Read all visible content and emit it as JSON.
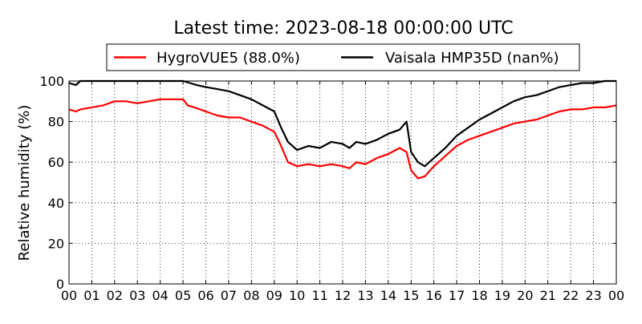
{
  "chart_data": {
    "type": "line",
    "title": "Latest time: 2023-08-18 00:00:00 UTC",
    "ylabel": "Relative humidity (%)",
    "xlabel": "",
    "ylim": [
      0,
      100
    ],
    "xlim": [
      0,
      24
    ],
    "grid": true,
    "legend_position": "top",
    "x_ticks": [
      {
        "value": 0,
        "label": "00"
      },
      {
        "value": 1,
        "label": "01"
      },
      {
        "value": 2,
        "label": "02"
      },
      {
        "value": 3,
        "label": "03"
      },
      {
        "value": 4,
        "label": "04"
      },
      {
        "value": 5,
        "label": "05"
      },
      {
        "value": 6,
        "label": "06"
      },
      {
        "value": 7,
        "label": "07"
      },
      {
        "value": 8,
        "label": "08"
      },
      {
        "value": 9,
        "label": "09"
      },
      {
        "value": 10,
        "label": "10"
      },
      {
        "value": 11,
        "label": "11"
      },
      {
        "value": 12,
        "label": "12"
      },
      {
        "value": 13,
        "label": "13"
      },
      {
        "value": 14,
        "label": "14"
      },
      {
        "value": 15,
        "label": "15"
      },
      {
        "value": 16,
        "label": "16"
      },
      {
        "value": 17,
        "label": "17"
      },
      {
        "value": 18,
        "label": "18"
      },
      {
        "value": 19,
        "label": "19"
      },
      {
        "value": 20,
        "label": "20"
      },
      {
        "value": 21,
        "label": "21"
      },
      {
        "value": 22,
        "label": "22"
      },
      {
        "value": 23,
        "label": "23"
      },
      {
        "value": 24,
        "label": "00"
      }
    ],
    "y_ticks": [
      0,
      20,
      40,
      60,
      80,
      100
    ],
    "series": [
      {
        "name": "HygroVUE5 (88.0%)",
        "color": "#ff0000",
        "x": [
          0,
          0.3,
          0.5,
          1,
          1.5,
          2,
          2.5,
          3,
          3.5,
          4,
          4.5,
          5,
          5.2,
          5.5,
          6,
          6.5,
          7,
          7.5,
          8,
          8.5,
          9,
          9.3,
          9.6,
          10,
          10.5,
          11,
          11.5,
          12,
          12.3,
          12.6,
          13,
          13.5,
          14,
          14.5,
          14.8,
          15,
          15.3,
          15.6,
          16,
          16.5,
          17,
          17.5,
          18,
          18.5,
          19,
          19.5,
          20,
          20.5,
          21,
          21.5,
          22,
          22.5,
          23,
          23.5,
          24
        ],
        "values": [
          86,
          85,
          86,
          87,
          88,
          90,
          90,
          89,
          90,
          91,
          91,
          91,
          88,
          87,
          85,
          83,
          82,
          82,
          80,
          78,
          75,
          68,
          60,
          58,
          59,
          58,
          59,
          58,
          57,
          60,
          59,
          62,
          64,
          67,
          65,
          56,
          52,
          53,
          58,
          63,
          68,
          71,
          73,
          75,
          77,
          79,
          80,
          81,
          83,
          85,
          86,
          86,
          87,
          87,
          88
        ]
      },
      {
        "name": "Vaisala HMP35D (nan%)",
        "color": "#000000",
        "x": [
          0,
          0.3,
          0.5,
          1,
          1.5,
          2,
          2.5,
          3,
          3.5,
          4,
          4.5,
          5,
          5.3,
          5.6,
          6,
          6.5,
          7,
          7.5,
          8,
          8.5,
          9,
          9.3,
          9.6,
          10,
          10.5,
          11,
          11.5,
          12,
          12.3,
          12.6,
          13,
          13.5,
          14,
          14.5,
          14.8,
          15,
          15.3,
          15.6,
          16,
          16.5,
          17,
          17.5,
          18,
          18.5,
          19,
          19.5,
          20,
          20.5,
          21,
          21.5,
          22,
          22.5,
          23,
          23.5,
          24
        ],
        "values": [
          99,
          98,
          100,
          100,
          100,
          100,
          100,
          100,
          100,
          100,
          100,
          100,
          99,
          98,
          97,
          96,
          95,
          93,
          91,
          88,
          85,
          77,
          70,
          66,
          68,
          67,
          70,
          69,
          67,
          70,
          69,
          71,
          74,
          76,
          80,
          65,
          60,
          58,
          62,
          67,
          73,
          77,
          81,
          84,
          87,
          90,
          92,
          93,
          95,
          97,
          98,
          99,
          99,
          100,
          100
        ]
      }
    ]
  }
}
